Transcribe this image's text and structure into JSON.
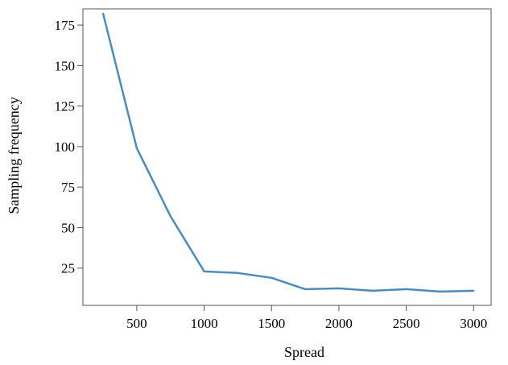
{
  "chart_data": {
    "type": "line",
    "title": "",
    "xlabel": "Spread",
    "ylabel": "Sampling frequency",
    "xlim": [
      100,
      3130
    ],
    "ylim": [
      2,
      185
    ],
    "xticks": [
      500,
      1000,
      1500,
      2000,
      2500,
      3000
    ],
    "yticks": [
      25,
      50,
      75,
      100,
      125,
      150,
      175
    ],
    "grid": false,
    "legend": "none",
    "line_color": "#4b8bbe",
    "series": [
      {
        "x": [
          250,
          500,
          750,
          1000,
          1250,
          1500,
          1750,
          2000,
          2250,
          2500,
          2750,
          3000
        ],
        "y": [
          182,
          99,
          57,
          23,
          22,
          19,
          12,
          12.5,
          11,
          12,
          10.5,
          11
        ]
      }
    ]
  }
}
